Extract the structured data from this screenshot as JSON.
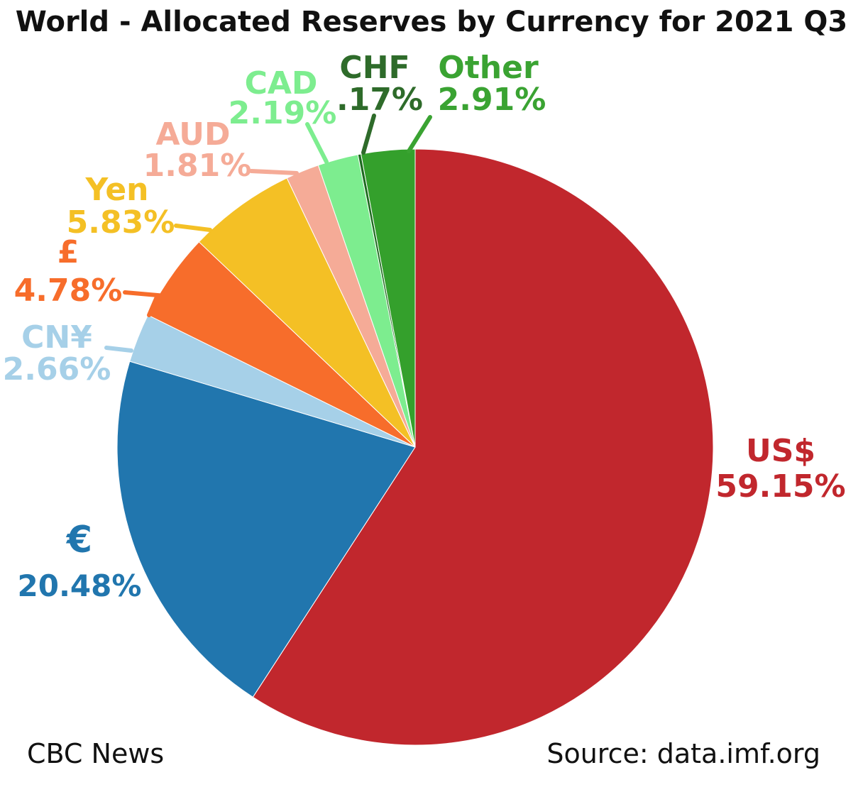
{
  "chart_data": {
    "type": "pie",
    "title": "World - Allocated Reserves by Currency for 2021 Q3",
    "slices": [
      {
        "label": "US$",
        "value": 59.15,
        "value_text": "59.15%",
        "color": "#c1272d",
        "label_color": "#c1272d"
      },
      {
        "label": "€",
        "value": 20.48,
        "value_text": "20.48%",
        "color": "#2176ae",
        "label_color": "#2176ae"
      },
      {
        "label": "CN¥",
        "value": 2.66,
        "value_text": "2.66%",
        "color": "#a6d0e8",
        "label_color": "#a6d0e8"
      },
      {
        "label": "£",
        "value": 4.78,
        "value_text": "4.78%",
        "color": "#f76d2b",
        "label_color": "#f76d2b"
      },
      {
        "label": "Yen",
        "value": 5.83,
        "value_text": "5.83%",
        "color": "#f4c025",
        "label_color": "#f4c025"
      },
      {
        "label": "AUD",
        "value": 1.81,
        "value_text": "1.81%",
        "color": "#f5ab97",
        "label_color": "#f5ab97"
      },
      {
        "label": "CAD",
        "value": 2.19,
        "value_text": "2.19%",
        "color": "#7ded8f",
        "label_color": "#7ded8f"
      },
      {
        "label": "CHF",
        "value": 0.17,
        "value_text": ".17%",
        "color": "#1d6b1f",
        "label_color": "#2e6b2a"
      },
      {
        "label": "Other",
        "value": 2.91,
        "value_text": "2.91%",
        "color": "#34a02c",
        "label_color": "#3aa332"
      }
    ]
  },
  "footer": {
    "credit": "CBC News",
    "source": "Source: data.imf.org"
  }
}
